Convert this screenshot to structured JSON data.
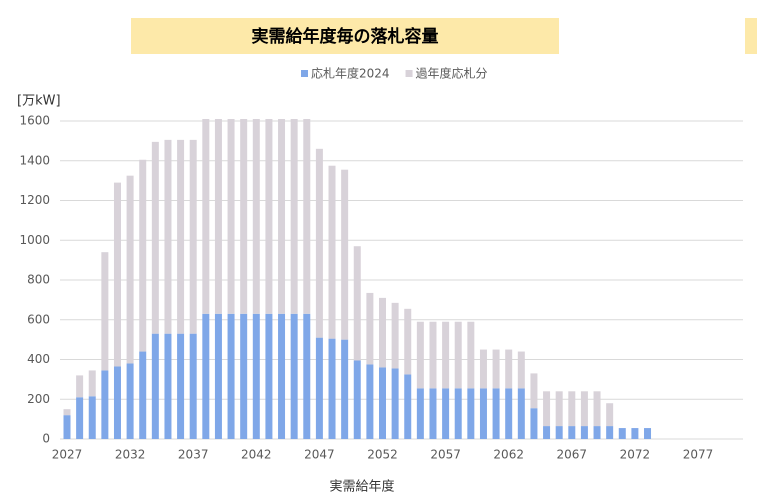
{
  "chart_data": {
    "type": "stacked_bar",
    "title": "実需給年度毎の落札容量",
    "y_axis_label": "[万kW]",
    "x_axis_label": "実需給年度",
    "categories": [
      "2027",
      null,
      null,
      null,
      null,
      "2032",
      null,
      null,
      null,
      null,
      "2037",
      null,
      null,
      null,
      null,
      "2042",
      null,
      null,
      null,
      null,
      "2047",
      null,
      null,
      null,
      null,
      "2052",
      null,
      null,
      null,
      null,
      "2057",
      null,
      null,
      null,
      null,
      "2062",
      null,
      null,
      null,
      null,
      "2067",
      null,
      null,
      null,
      null,
      "2072",
      null,
      null,
      null,
      null,
      "2077",
      null,
      null,
      null
    ],
    "series": [
      {
        "name": "応札年度2024",
        "color": "#7fa7e8",
        "values": [
          120,
          210,
          215,
          345,
          365,
          380,
          440,
          530,
          530,
          530,
          530,
          630,
          630,
          630,
          630,
          630,
          630,
          630,
          630,
          630,
          510,
          505,
          500,
          395,
          375,
          360,
          355,
          325,
          255,
          255,
          255,
          255,
          255,
          255,
          255,
          255,
          255,
          155,
          65,
          65,
          65,
          65,
          65,
          65,
          55,
          55,
          55,
          0,
          0,
          0,
          0,
          0,
          0,
          0
        ]
      },
      {
        "name": "過年度応札分",
        "color": "#d8d2d9",
        "values": [
          30,
          110,
          130,
          595,
          925,
          945,
          965,
          965,
          975,
          975,
          975,
          980,
          980,
          980,
          980,
          980,
          980,
          980,
          980,
          980,
          950,
          870,
          855,
          575,
          360,
          350,
          330,
          330,
          335,
          335,
          335,
          335,
          335,
          195,
          195,
          195,
          185,
          175,
          175,
          175,
          175,
          175,
          175,
          115,
          0,
          0,
          0,
          0,
          0,
          0,
          0,
          0,
          0,
          0
        ]
      }
    ],
    "ylim": [
      0,
      1600
    ],
    "yticks": [
      0,
      200,
      400,
      600,
      800,
      1000,
      1200,
      1400,
      1600
    ],
    "grid": true
  }
}
